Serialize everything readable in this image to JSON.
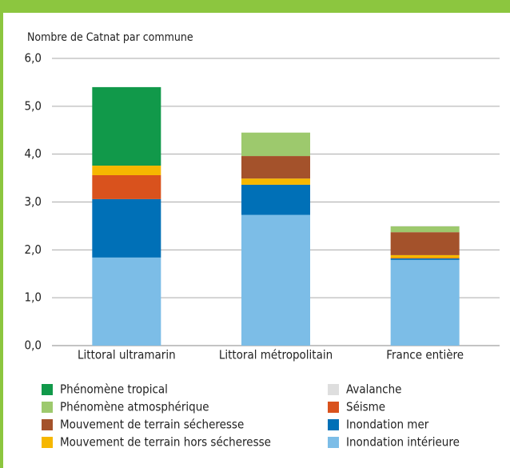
{
  "chart_data": {
    "type": "stacked-bar",
    "title": "Nombre de Catnat par commune",
    "categories": [
      "Littoral ultramarin",
      "Littoral métropolitain",
      "France entière"
    ],
    "series": [
      {
        "name": "Phénomène tropical",
        "color": "#11994a",
        "values": [
          1.64,
          0,
          0
        ]
      },
      {
        "name": "Phénomène atmosphérique",
        "color": "#9dc96d",
        "values": [
          0,
          0.49,
          0.12
        ]
      },
      {
        "name": "Mouvement de terrain sécheresse",
        "color": "#a4522b",
        "values": [
          0,
          0.47,
          0.48
        ]
      },
      {
        "name": "Mouvement de terrain hors sécheresse",
        "color": "#f6b700",
        "values": [
          0.2,
          0.13,
          0.06
        ]
      },
      {
        "name": "Avalanche",
        "color": "#dedede",
        "values": [
          0,
          0,
          0.01
        ]
      },
      {
        "name": "Séisme",
        "color": "#d9521d",
        "values": [
          0.5,
          0,
          0.01
        ]
      },
      {
        "name": "Inondation mer",
        "color": "#0070b7",
        "values": [
          1.22,
          0.63,
          0.03
        ]
      },
      {
        "name": "Inondation intérieure",
        "color": "#7cbde7",
        "values": [
          1.84,
          2.73,
          1.79
        ]
      }
    ],
    "ylim": [
      0,
      6
    ],
    "yticks": [
      {
        "value": 0,
        "label": "0,0"
      },
      {
        "value": 1,
        "label": "1,0"
      },
      {
        "value": 2,
        "label": "2,0"
      },
      {
        "value": 3,
        "label": "3,0"
      },
      {
        "value": 4,
        "label": "4,0"
      },
      {
        "value": 5,
        "label": "5,0"
      },
      {
        "value": 6,
        "label": "6,0"
      }
    ],
    "grid": true
  }
}
